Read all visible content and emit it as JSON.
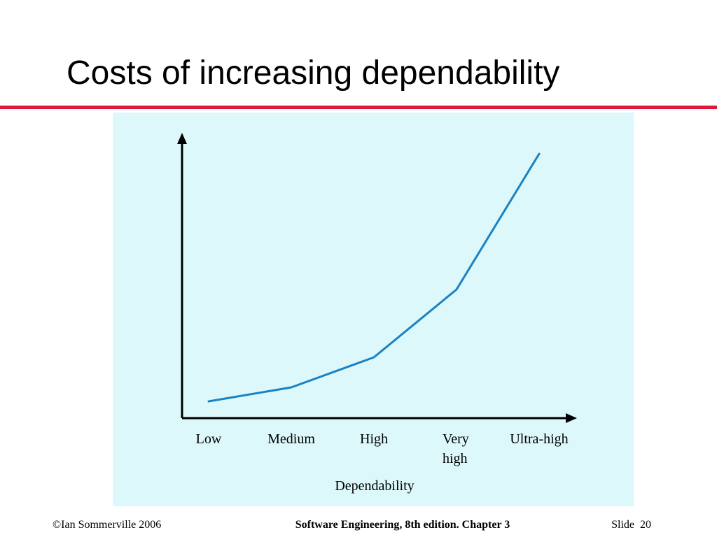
{
  "slide": {
    "title": "Costs of increasing dependability",
    "footer": {
      "left": "©Ian Sommerville 2006",
      "center": "Software Engineering, 8th edition. Chapter 3",
      "right": "Slide  20"
    }
  },
  "chart_data": {
    "type": "line",
    "x_label": "Dependability",
    "categories": [
      "Low",
      "Medium",
      "High",
      "Very high",
      "Ultra-high"
    ],
    "values": [
      24,
      44,
      87,
      184,
      378
    ],
    "color": "#1a82c4"
  }
}
